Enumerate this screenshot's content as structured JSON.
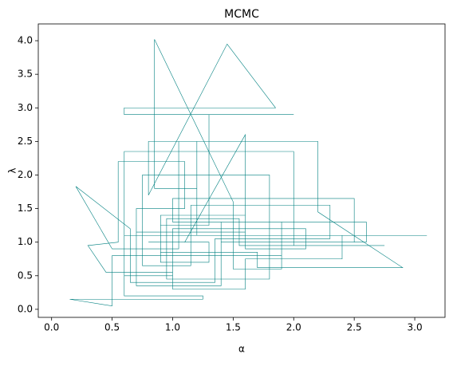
{
  "chart_data": {
    "type": "line",
    "title": "MCMC",
    "xlabel": "α",
    "ylabel": "λ",
    "color": "#008080",
    "x": [
      0.8,
      1.3,
      1.3,
      0.9,
      0.9,
      1.6,
      1.6,
      2.1,
      2.1,
      1.0,
      1.0,
      0.6,
      0.6,
      1.2,
      1.2,
      0.85,
      0.85,
      1.5,
      1.5,
      1.9,
      1.9,
      2.6,
      2.6,
      1.4,
      1.4,
      0.7,
      0.7,
      1.1,
      1.1,
      0.55,
      0.55,
      0.3,
      0.45,
      1.0,
      1.0,
      1.6,
      1.6,
      2.4,
      2.4,
      3.1,
      1.2,
      1.2,
      0.8,
      0.8,
      1.45,
      1.85,
      0.6,
      0.6,
      2.0,
      1.3,
      1.3,
      0.9,
      0.9,
      1.7,
      1.7,
      2.9,
      2.2,
      2.2,
      1.05,
      1.05,
      0.5,
      0.2,
      0.65,
      0.65,
      1.35,
      1.35,
      2.3,
      2.3,
      1.15,
      1.15,
      0.75,
      0.75,
      1.8,
      1.8,
      0.95,
      0.95,
      1.55,
      1.55,
      2.75,
      2.0,
      2.0,
      0.6,
      0.6,
      1.25,
      1.25,
      0.15,
      0.5,
      0.5,
      1.9,
      1.9,
      1.0,
      1.0,
      2.5,
      2.5,
      1.4,
      1.4,
      0.7,
      0.7,
      1.6,
      1.6,
      1.1
    ],
    "values": [
      1.0,
      1.0,
      0.7,
      0.7,
      1.4,
      1.4,
      0.9,
      0.9,
      1.2,
      1.2,
      0.5,
      0.5,
      1.1,
      1.1,
      1.8,
      1.8,
      4.02,
      1.6,
      0.6,
      0.6,
      1.0,
      1.0,
      1.3,
      1.3,
      0.8,
      0.8,
      1.5,
      1.5,
      2.2,
      2.2,
      1.0,
      0.95,
      0.55,
      0.55,
      0.3,
      0.3,
      0.75,
      0.75,
      1.1,
      1.1,
      1.1,
      2.5,
      2.5,
      1.7,
      3.95,
      3.0,
      3.0,
      2.9,
      2.9,
      2.9,
      1.25,
      1.25,
      0.85,
      0.85,
      0.62,
      0.62,
      1.45,
      2.5,
      2.5,
      0.9,
      0.9,
      1.83,
      1.2,
      0.4,
      0.4,
      1.05,
      1.05,
      1.55,
      1.55,
      0.65,
      0.65,
      2.0,
      2.0,
      0.45,
      0.45,
      1.35,
      1.35,
      0.95,
      0.95,
      0.95,
      2.35,
      2.35,
      0.2,
      0.2,
      0.15,
      0.15,
      0.05,
      0.8,
      0.8,
      1.3,
      1.3,
      1.65,
      1.65,
      1.0,
      1.0,
      0.35,
      0.35,
      1.15,
      1.15,
      2.6,
      1.0
    ],
    "xlim": [
      -0.11,
      3.25
    ],
    "ylim": [
      -0.12,
      4.25
    ],
    "xticks": [
      {
        "value": 0,
        "label": "0.0"
      },
      {
        "value": 0.5,
        "label": "0.5"
      },
      {
        "value": 1,
        "label": "1.0"
      },
      {
        "value": 1.5,
        "label": "1.5"
      },
      {
        "value": 2,
        "label": "2.0"
      },
      {
        "value": 2.5,
        "label": "2.5"
      },
      {
        "value": 3,
        "label": "3.0"
      }
    ],
    "yticks": [
      {
        "value": 0,
        "label": "0.0"
      },
      {
        "value": 0.5,
        "label": "0.5"
      },
      {
        "value": 1,
        "label": "1.0"
      },
      {
        "value": 1.5,
        "label": "1.5"
      },
      {
        "value": 2,
        "label": "2.0"
      },
      {
        "value": 2.5,
        "label": "2.5"
      },
      {
        "value": 3,
        "label": "3.0"
      },
      {
        "value": 3.5,
        "label": "3.5"
      },
      {
        "value": 4,
        "label": "4.0"
      }
    ]
  }
}
